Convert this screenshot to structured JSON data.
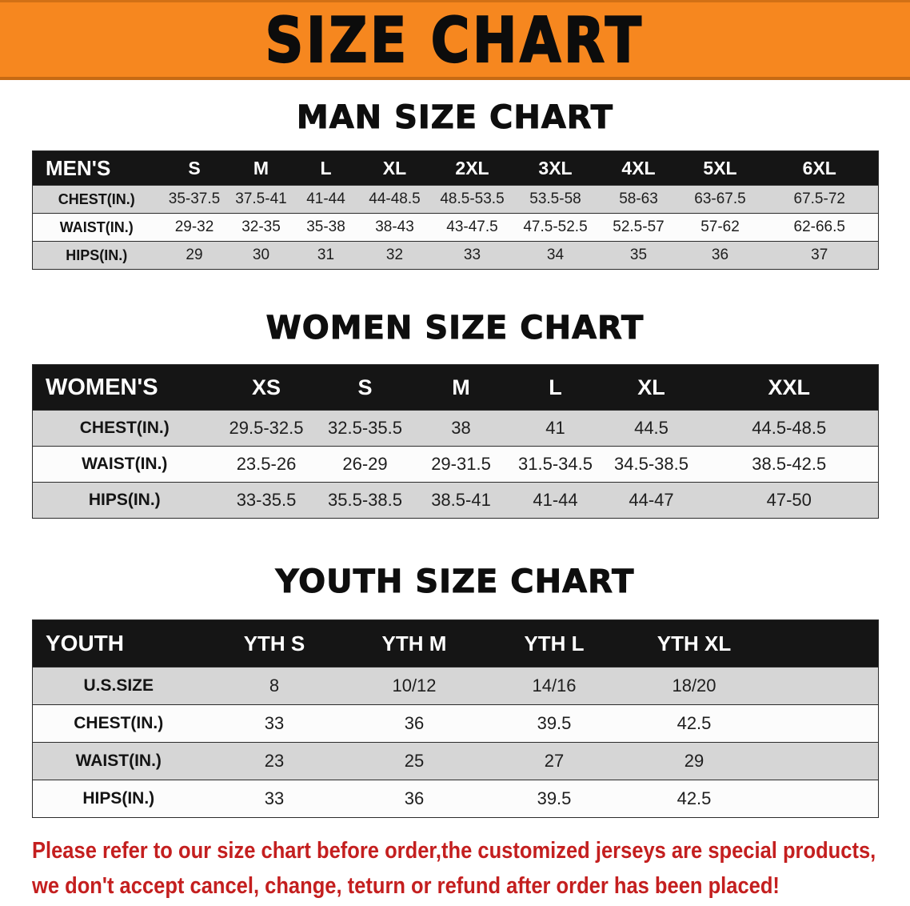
{
  "banner": {
    "title": "SIZE CHART"
  },
  "colors": {
    "banner_bg": "#f6871f",
    "header_bg": "#151515",
    "row_alt": "#d6d6d6",
    "notice_color": "#c41f1f"
  },
  "chart_data": [
    {
      "type": "table",
      "title": "MAN SIZE CHART",
      "corner_label": "MEN'S",
      "columns": [
        "S",
        "M",
        "L",
        "XL",
        "2XL",
        "3XL",
        "4XL",
        "5XL",
        "6XL"
      ],
      "rows": [
        {
          "label": "CHEST(IN.)",
          "values": [
            "35-37.5",
            "37.5-41",
            "41-44",
            "44-48.5",
            "48.5-53.5",
            "53.5-58",
            "58-63",
            "63-67.5",
            "67.5-72"
          ]
        },
        {
          "label": "WAIST(IN.)",
          "values": [
            "29-32",
            "32-35",
            "35-38",
            "38-43",
            "43-47.5",
            "47.5-52.5",
            "52.5-57",
            "57-62",
            "62-66.5"
          ]
        },
        {
          "label": "HIPS(IN.)",
          "values": [
            "29",
            "30",
            "31",
            "32",
            "33",
            "34",
            "35",
            "36",
            "37"
          ]
        }
      ]
    },
    {
      "type": "table",
      "title": "WOMEN SIZE CHART",
      "corner_label": "WOMEN'S",
      "columns": [
        "XS",
        "S",
        "M",
        "L",
        "XL",
        "XXL"
      ],
      "rows": [
        {
          "label": "CHEST(IN.)",
          "values": [
            "29.5-32.5",
            "32.5-35.5",
            "38",
            "41",
            "44.5",
            "44.5-48.5"
          ]
        },
        {
          "label": "WAIST(IN.)",
          "values": [
            "23.5-26",
            "26-29",
            "29-31.5",
            "31.5-34.5",
            "34.5-38.5",
            "38.5-42.5"
          ]
        },
        {
          "label": "HIPS(IN.)",
          "values": [
            "33-35.5",
            "35.5-38.5",
            "38.5-41",
            "41-44",
            "44-47",
            "47-50"
          ]
        }
      ]
    },
    {
      "type": "table",
      "title": "YOUTH SIZE CHART",
      "corner_label": "YOUTH",
      "columns": [
        "YTH S",
        "YTH M",
        "YTH L",
        "YTH XL"
      ],
      "rows": [
        {
          "label": "U.S.SIZE",
          "values": [
            "8",
            "10/12",
            "14/16",
            "18/20"
          ]
        },
        {
          "label": "CHEST(IN.)",
          "values": [
            "33",
            "36",
            "39.5",
            "42.5"
          ]
        },
        {
          "label": "WAIST(IN.)",
          "values": [
            "23",
            "25",
            "27",
            "29"
          ]
        },
        {
          "label": "HIPS(IN.)",
          "values": [
            "33",
            "36",
            "39.5",
            "42.5"
          ]
        }
      ]
    }
  ],
  "footer": {
    "line1": "Please refer to our size chart before order,the customized jerseys are special products,",
    "line2": "we don't accept cancel, change, teturn or refund after order has been placed!"
  }
}
